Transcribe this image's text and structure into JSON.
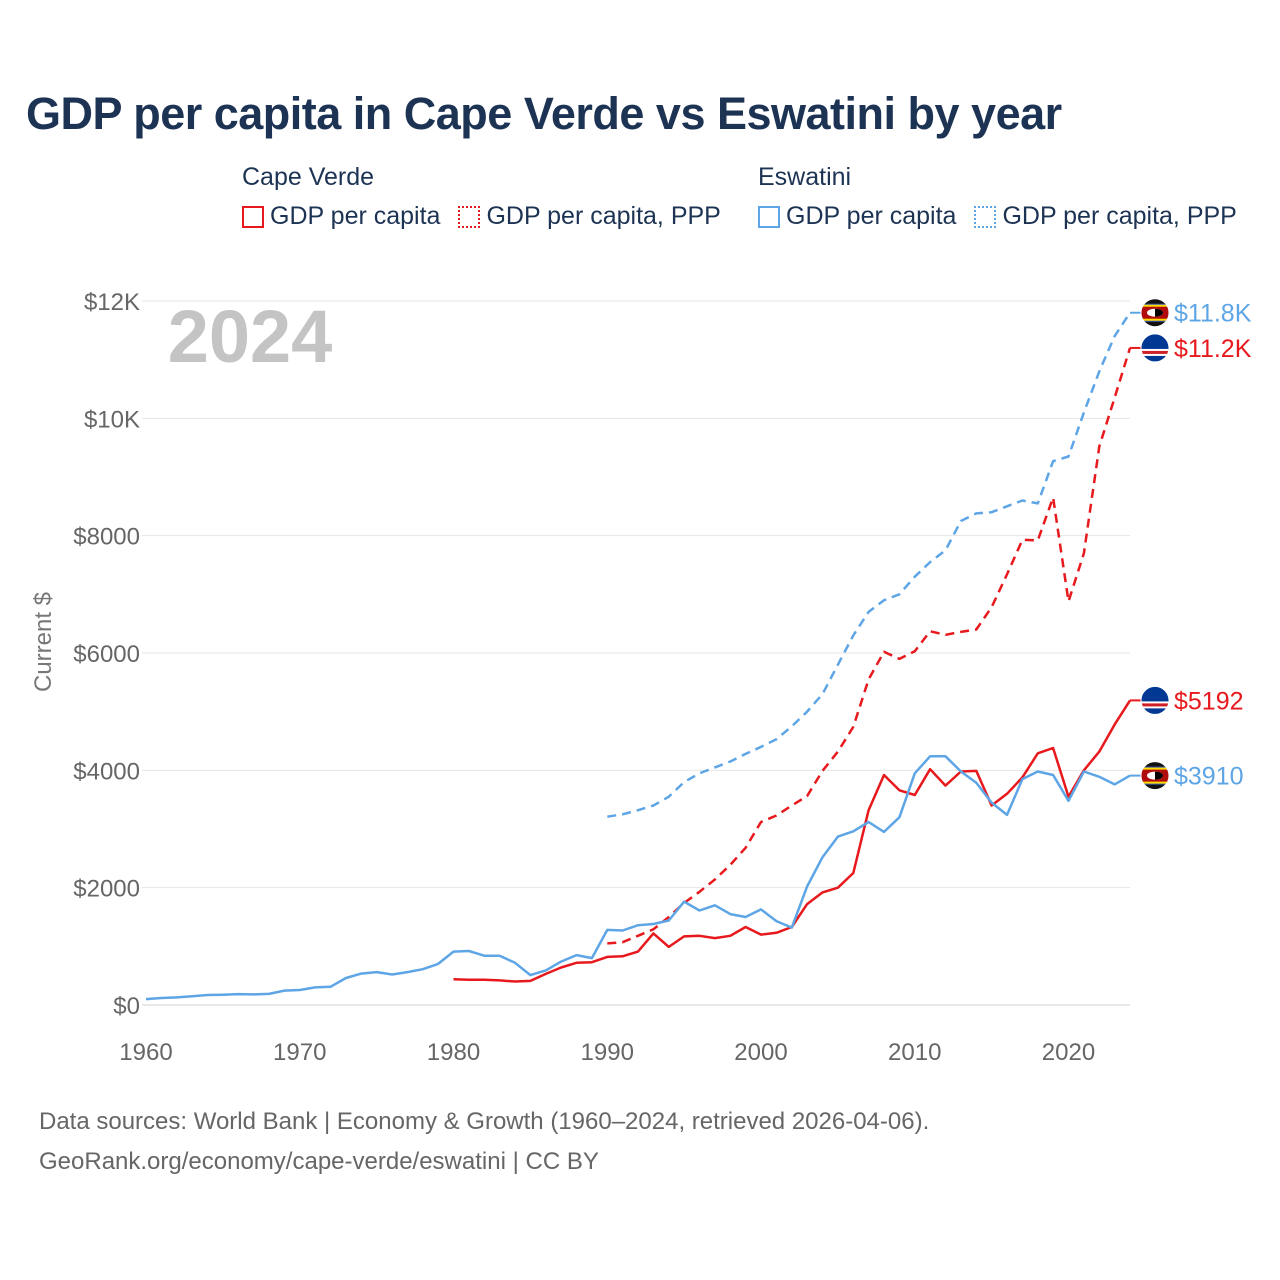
{
  "title": "GDP per capita in Cape Verde vs Eswatini by year",
  "legend": {
    "groups": [
      {
        "name": "Cape Verde",
        "color": "#e8191d",
        "items": [
          {
            "label": "GDP per capita",
            "style": "solid"
          },
          {
            "label": "GDP per capita, PPP",
            "style": "dotted"
          }
        ]
      },
      {
        "name": "Eswatini",
        "color": "#5ea5e6",
        "items": [
          {
            "label": "GDP per capita",
            "style": "solid"
          },
          {
            "label": "GDP per capita, PPP",
            "style": "dotted"
          }
        ]
      }
    ]
  },
  "source": {
    "line1": "Data sources: World Bank | Economy & Growth (1960–2024, retrieved 2026-04-06).",
    "line2": "GeoRank.org/economy/cape-verde/eswatini | CC BY"
  },
  "chart_data": {
    "type": "line",
    "year_label": "2024",
    "ylabel": "Current $",
    "xlim": [
      1960,
      2024
    ],
    "ylim": [
      0,
      12000
    ],
    "x_ticks": [
      1960,
      1970,
      1980,
      1990,
      2000,
      2010,
      2020
    ],
    "y_ticks": [
      {
        "value": 0,
        "label": "$0"
      },
      {
        "value": 2000,
        "label": "$2000"
      },
      {
        "value": 4000,
        "label": "$4000"
      },
      {
        "value": 6000,
        "label": "$6000"
      },
      {
        "value": 8000,
        "label": "$8000"
      },
      {
        "value": 10000,
        "label": "$10K"
      },
      {
        "value": 12000,
        "label": "$12K"
      }
    ],
    "series": [
      {
        "name": "Eswatini GDP per capita, PPP",
        "country": "Eswatini",
        "color": "#5ea5e6",
        "dashed": true,
        "end_label": "$11.8K",
        "flag": "eswatini",
        "x": [
          1990,
          1991,
          1992,
          1993,
          1994,
          1995,
          1996,
          1997,
          1998,
          1999,
          2000,
          2001,
          2002,
          2003,
          2004,
          2005,
          2006,
          2007,
          2008,
          2009,
          2010,
          2011,
          2012,
          2013,
          2014,
          2015,
          2016,
          2017,
          2018,
          2019,
          2020,
          2021,
          2022,
          2023,
          2024
        ],
        "y": [
          3210,
          3250,
          3320,
          3400,
          3550,
          3800,
          3950,
          4050,
          4150,
          4280,
          4400,
          4530,
          4750,
          5000,
          5300,
          5800,
          6300,
          6700,
          6900,
          7000,
          7300,
          7550,
          7750,
          8250,
          8380,
          8400,
          8500,
          8600,
          8550,
          9270,
          9350,
          10100,
          10800,
          11400,
          11800
        ]
      },
      {
        "name": "Cape Verde GDP per capita, PPP",
        "country": "Cape Verde",
        "color": "#e8191d",
        "dashed": true,
        "end_label": "$11.2K",
        "flag": "cape-verde",
        "x": [
          1990,
          1991,
          1992,
          1993,
          1994,
          1995,
          1996,
          1997,
          1998,
          1999,
          2000,
          2001,
          2002,
          2003,
          2004,
          2005,
          2006,
          2007,
          2008,
          2009,
          2010,
          2011,
          2012,
          2013,
          2014,
          2015,
          2016,
          2017,
          2018,
          2019,
          2020,
          2021,
          2022,
          2023,
          2024
        ],
        "y": [
          1050,
          1070,
          1180,
          1290,
          1500,
          1740,
          1930,
          2140,
          2390,
          2680,
          3120,
          3230,
          3400,
          3560,
          3990,
          4320,
          4740,
          5550,
          6020,
          5900,
          6030,
          6370,
          6310,
          6360,
          6400,
          6780,
          7340,
          7930,
          7920,
          8650,
          6880,
          7700,
          9520,
          10350,
          11200
        ]
      },
      {
        "name": "Cape Verde GDP per capita",
        "country": "Cape Verde",
        "color": "#e8191d",
        "dashed": false,
        "end_label": "$5192",
        "flag": "cape-verde",
        "x": [
          1980,
          1981,
          1982,
          1983,
          1984,
          1985,
          1986,
          1987,
          1988,
          1989,
          1990,
          1991,
          1992,
          1993,
          1994,
          1995,
          1996,
          1997,
          1998,
          1999,
          2000,
          2001,
          2002,
          2003,
          2004,
          2005,
          2006,
          2007,
          2008,
          2009,
          2010,
          2011,
          2012,
          2013,
          2014,
          2015,
          2016,
          2017,
          2018,
          2019,
          2020,
          2021,
          2022,
          2023,
          2024
        ],
        "y": [
          440,
          430,
          430,
          420,
          400,
          410,
          530,
          640,
          720,
          730,
          820,
          830,
          910,
          1220,
          990,
          1170,
          1180,
          1140,
          1180,
          1330,
          1200,
          1230,
          1330,
          1720,
          1920,
          2000,
          2250,
          3320,
          3920,
          3660,
          3580,
          4020,
          3740,
          3980,
          3990,
          3400,
          3600,
          3880,
          4290,
          4380,
          3550,
          4000,
          4320,
          4780,
          5192
        ]
      },
      {
        "name": "Eswatini GDP per capita",
        "country": "Eswatini",
        "color": "#5ea5e6",
        "dashed": false,
        "end_label": "$3910",
        "flag": "eswatini",
        "x": [
          1960,
          1961,
          1962,
          1963,
          1964,
          1965,
          1966,
          1967,
          1968,
          1969,
          1970,
          1971,
          1972,
          1973,
          1974,
          1975,
          1976,
          1977,
          1978,
          1979,
          1980,
          1981,
          1982,
          1983,
          1984,
          1985,
          1986,
          1987,
          1988,
          1989,
          1990,
          1991,
          1992,
          1993,
          1994,
          1995,
          1996,
          1997,
          1998,
          1999,
          2000,
          2001,
          2002,
          2003,
          2004,
          2005,
          2006,
          2007,
          2008,
          2009,
          2010,
          2011,
          2012,
          2013,
          2014,
          2015,
          2016,
          2017,
          2018,
          2019,
          2020,
          2021,
          2022,
          2023,
          2024
        ],
        "y": [
          100,
          120,
          130,
          150,
          170,
          175,
          185,
          180,
          190,
          245,
          255,
          300,
          310,
          460,
          535,
          560,
          520,
          560,
          610,
          700,
          910,
          920,
          840,
          840,
          720,
          510,
          590,
          740,
          850,
          800,
          1280,
          1270,
          1360,
          1380,
          1440,
          1760,
          1610,
          1700,
          1550,
          1500,
          1630,
          1430,
          1320,
          2020,
          2520,
          2870,
          2960,
          3120,
          2950,
          3200,
          3950,
          4240,
          4240,
          3980,
          3790,
          3450,
          3240,
          3850,
          3980,
          3920,
          3480,
          3980,
          3890,
          3760,
          3910
        ]
      }
    ]
  }
}
